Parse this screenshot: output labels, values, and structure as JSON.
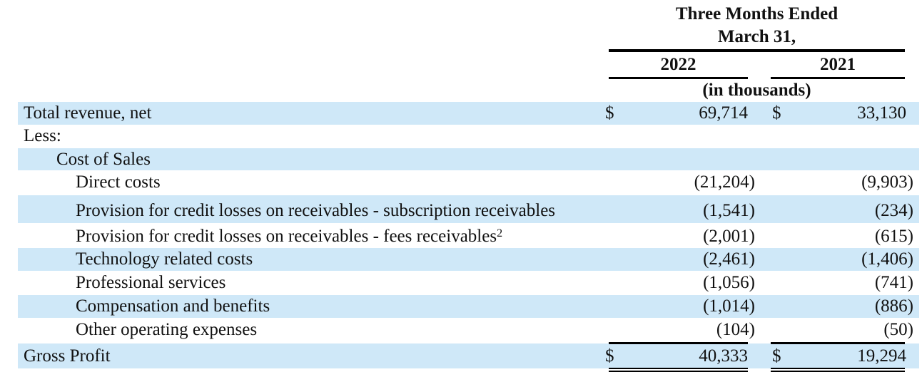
{
  "header": {
    "period_line1": "Three Months Ended",
    "period_line2": "March 31,",
    "col_2022": "2022",
    "col_2021": "2021",
    "units": "(in thousands)"
  },
  "currency_symbol": "$",
  "rows": {
    "total_revenue": {
      "label": "Total revenue, net",
      "v2022": "69,714",
      "v2021": "33,130"
    },
    "less": {
      "label": "Less:"
    },
    "cost_of_sales": {
      "label": "Cost of Sales"
    },
    "direct_costs": {
      "label": "Direct costs",
      "v2022": "(21,204)",
      "v2021": "(9,903)"
    },
    "prov_subscription": {
      "label": "Provision for credit losses on receivables - subscription receivables",
      "v2022": "(1,541)",
      "v2021": "(234)"
    },
    "prov_fees": {
      "label": "Provision for credit losses on receivables - fees receivables",
      "footnote": "2",
      "v2022": "(2,001)",
      "v2021": "(615)"
    },
    "technology": {
      "label": "Technology related costs",
      "v2022": "(2,461)",
      "v2021": "(1,406)"
    },
    "professional": {
      "label": "Professional services",
      "v2022": "(1,056)",
      "v2021": "(741)"
    },
    "compensation": {
      "label": "Compensation and benefits",
      "v2022": "(1,014)",
      "v2021": "(886)"
    },
    "other_opex": {
      "label": "Other operating expenses",
      "v2022": "(104)",
      "v2021": "(50)"
    },
    "gross_profit": {
      "label": "Gross Profit",
      "v2022": "40,333",
      "v2021": "19,294"
    }
  }
}
